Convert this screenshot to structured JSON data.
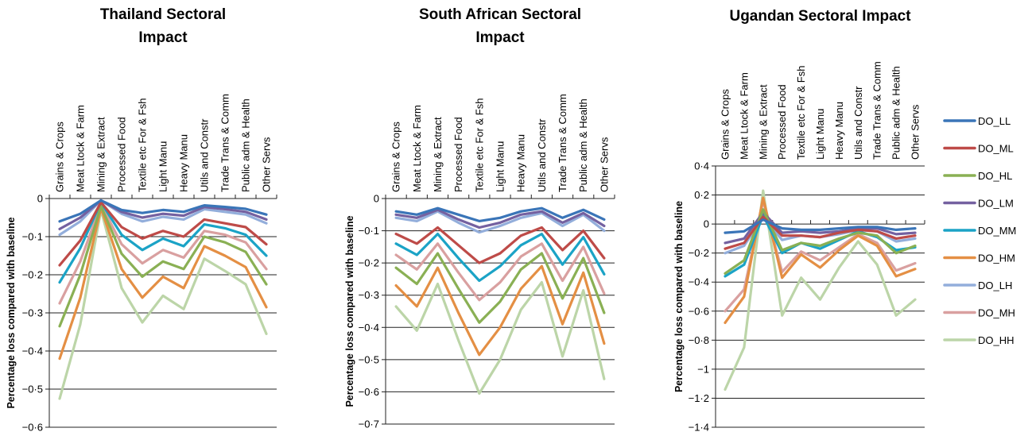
{
  "series_colors": {
    "DO_LL": "#3a75b8",
    "DO_ML": "#be4b48",
    "DO_HL": "#8ab054",
    "DO_LM": "#7461a0",
    "DO_MM": "#1ba3c6",
    "DO_HM": "#e48f44",
    "DO_LH": "#93aedb",
    "DO_MH": "#d9a0a0",
    "DO_HH": "#bcd5a8"
  },
  "legend": [
    "DO_LL",
    "DO_ML",
    "DO_HL",
    "DO_LM",
    "DO_MM",
    "DO_HM",
    "DO_LH",
    "DO_MH",
    "DO_HH"
  ],
  "chart_data": [
    {
      "type": "line",
      "title_lines": [
        "Thailand Sectoral",
        "Impact"
      ],
      "ylabel": "Percentage loss compared with baseline",
      "ylim": [
        -0.6,
        0
      ],
      "yticks": [
        0,
        -0.1,
        -0.2,
        -0.3,
        -0.4,
        -0.5,
        -0.6
      ],
      "ytick_labels": [
        "0",
        "−0·1",
        "−0·2",
        "−0·3",
        "−0·4",
        "−0·5",
        "−0·6"
      ],
      "grid": true,
      "categories": [
        "Grains & Crops",
        "Meat Ltock & Farm",
        "Mining & Extract",
        "Processed Food",
        "Textile etc For & Fsh",
        "Light Manu",
        "Heavy Manu",
        "Utils and Constr",
        "Trade Trans & Comm",
        "Public adm & Health",
        "Other Servs"
      ],
      "series": [
        {
          "name": "DO_LL",
          "values": [
            -0.06,
            -0.04,
            -0.005,
            -0.03,
            -0.038,
            -0.03,
            -0.035,
            -0.018,
            -0.022,
            -0.027,
            -0.042
          ]
        },
        {
          "name": "DO_ML",
          "values": [
            -0.175,
            -0.11,
            -0.01,
            -0.075,
            -0.105,
            -0.085,
            -0.1,
            -0.055,
            -0.065,
            -0.075,
            -0.12
          ]
        },
        {
          "name": "DO_HL",
          "values": [
            -0.335,
            -0.2,
            -0.02,
            -0.145,
            -0.205,
            -0.165,
            -0.185,
            -0.1,
            -0.115,
            -0.14,
            -0.225
          ]
        },
        {
          "name": "DO_LM",
          "values": [
            -0.08,
            -0.05,
            -0.005,
            -0.035,
            -0.05,
            -0.04,
            -0.045,
            -0.022,
            -0.028,
            -0.035,
            -0.055
          ]
        },
        {
          "name": "DO_MM",
          "values": [
            -0.22,
            -0.13,
            -0.01,
            -0.095,
            -0.135,
            -0.105,
            -0.125,
            -0.068,
            -0.078,
            -0.095,
            -0.15
          ]
        },
        {
          "name": "DO_HM",
          "values": [
            -0.42,
            -0.26,
            -0.025,
            -0.185,
            -0.26,
            -0.205,
            -0.235,
            -0.125,
            -0.15,
            -0.18,
            -0.285
          ]
        },
        {
          "name": "DO_LH",
          "values": [
            -0.095,
            -0.06,
            -0.005,
            -0.04,
            -0.06,
            -0.048,
            -0.055,
            -0.028,
            -0.035,
            -0.042,
            -0.065
          ]
        },
        {
          "name": "DO_MH",
          "values": [
            -0.275,
            -0.165,
            -0.015,
            -0.12,
            -0.17,
            -0.135,
            -0.155,
            -0.085,
            -0.095,
            -0.115,
            -0.185
          ]
        },
        {
          "name": "DO_HH",
          "values": [
            -0.525,
            -0.33,
            -0.03,
            -0.235,
            -0.325,
            -0.255,
            -0.29,
            -0.158,
            -0.19,
            -0.225,
            -0.355
          ]
        }
      ]
    },
    {
      "type": "line",
      "title_lines": [
        "South African Sectoral",
        "Impact"
      ],
      "ylabel": "Percentage loss compared with baseline",
      "ylim": [
        -0.7,
        0
      ],
      "yticks": [
        0,
        -0.1,
        -0.2,
        -0.3,
        -0.4,
        -0.5,
        -0.6,
        -0.7
      ],
      "ytick_labels": [
        "0",
        "−0·1",
        "−0·2",
        "−0·3",
        "−0·4",
        "−0·5",
        "−0·6",
        "−0·7"
      ],
      "grid": true,
      "categories": [
        "Grains & Crops",
        "Meat Ltock & Farm",
        "Mining & Extract",
        "Processed Food",
        "Textile etc For & Fsh",
        "Light Manu",
        "Heavy Manu",
        "Utils and Constr",
        "Trade Trans & Comm",
        "Public adm & Health",
        "Other Servs"
      ],
      "series": [
        {
          "name": "DO_LL",
          "values": [
            -0.04,
            -0.05,
            -0.03,
            -0.05,
            -0.07,
            -0.06,
            -0.04,
            -0.03,
            -0.06,
            -0.035,
            -0.065
          ]
        },
        {
          "name": "DO_ML",
          "values": [
            -0.11,
            -0.14,
            -0.09,
            -0.145,
            -0.2,
            -0.17,
            -0.115,
            -0.09,
            -0.16,
            -0.1,
            -0.185
          ]
        },
        {
          "name": "DO_HL",
          "values": [
            -0.215,
            -0.265,
            -0.17,
            -0.28,
            -0.385,
            -0.32,
            -0.22,
            -0.17,
            -0.31,
            -0.185,
            -0.355
          ]
        },
        {
          "name": "DO_LM",
          "values": [
            -0.05,
            -0.06,
            -0.035,
            -0.065,
            -0.09,
            -0.075,
            -0.05,
            -0.04,
            -0.075,
            -0.045,
            -0.085
          ]
        },
        {
          "name": "DO_MM",
          "values": [
            -0.14,
            -0.175,
            -0.11,
            -0.185,
            -0.255,
            -0.21,
            -0.145,
            -0.11,
            -0.205,
            -0.12,
            -0.235
          ]
        },
        {
          "name": "DO_HM",
          "values": [
            -0.27,
            -0.335,
            -0.215,
            -0.355,
            -0.485,
            -0.4,
            -0.28,
            -0.21,
            -0.39,
            -0.23,
            -0.45
          ]
        },
        {
          "name": "DO_LH",
          "values": [
            -0.06,
            -0.07,
            -0.04,
            -0.075,
            -0.105,
            -0.085,
            -0.06,
            -0.045,
            -0.085,
            -0.05,
            -0.1
          ]
        },
        {
          "name": "DO_MH",
          "values": [
            -0.175,
            -0.22,
            -0.14,
            -0.23,
            -0.315,
            -0.26,
            -0.18,
            -0.14,
            -0.255,
            -0.15,
            -0.295
          ]
        },
        {
          "name": "DO_HH",
          "values": [
            -0.335,
            -0.41,
            -0.265,
            -0.44,
            -0.605,
            -0.5,
            -0.345,
            -0.26,
            -0.49,
            -0.285,
            -0.56
          ]
        }
      ]
    },
    {
      "type": "line",
      "title_lines": [
        "Ugandan Sectoral Impact"
      ],
      "ylabel": "Percentage loss compared with baseline",
      "ylim": [
        -1.4,
        0.4
      ],
      "yticks": [
        0.4,
        0.2,
        0,
        -0.2,
        -0.4,
        -0.6,
        -0.8,
        -1,
        -1.2,
        -1.4
      ],
      "ytick_labels": [
        "0·4",
        "0·2",
        "0",
        "−0·2",
        "−0·4",
        "−0·6",
        "−0·8",
        "−1",
        "−1·2",
        "−1·4"
      ],
      "grid": true,
      "categories": [
        "Grains & Crops",
        "Meat Ltock & Farm",
        "Mining & Extract",
        "Processed Food",
        "Textile etc For & Fsh",
        "Light Manu",
        "Heavy Manu",
        "Utils and Constr",
        "Trade Trans & Comm",
        "Public adm & Health",
        "Other Servs"
      ],
      "series": [
        {
          "name": "DO_LL",
          "values": [
            -0.06,
            -0.05,
            0.03,
            -0.03,
            -0.04,
            -0.04,
            -0.03,
            -0.02,
            -0.02,
            -0.04,
            -0.03
          ]
        },
        {
          "name": "DO_ML",
          "values": [
            -0.17,
            -0.13,
            0.05,
            -0.08,
            -0.08,
            -0.09,
            -0.06,
            -0.04,
            -0.05,
            -0.1,
            -0.08
          ]
        },
        {
          "name": "DO_HL",
          "values": [
            -0.34,
            -0.25,
            0.1,
            -0.18,
            -0.13,
            -0.15,
            -0.1,
            -0.06,
            -0.08,
            -0.2,
            -0.15
          ]
        },
        {
          "name": "DO_LM",
          "values": [
            -0.13,
            -0.1,
            0.08,
            -0.06,
            -0.05,
            -0.06,
            -0.05,
            -0.03,
            -0.03,
            -0.07,
            -0.06
          ]
        },
        {
          "name": "DO_MM",
          "values": [
            -0.36,
            -0.28,
            0.06,
            -0.2,
            -0.13,
            -0.17,
            -0.11,
            -0.05,
            -0.09,
            -0.18,
            -0.16
          ]
        },
        {
          "name": "DO_HM",
          "values": [
            -0.68,
            -0.5,
            0.18,
            -0.37,
            -0.21,
            -0.3,
            -0.18,
            -0.08,
            -0.15,
            -0.36,
            -0.31
          ]
        },
        {
          "name": "DO_LH",
          "values": [
            -0.2,
            -0.15,
            0.05,
            -0.11,
            -0.08,
            -0.09,
            -0.07,
            -0.04,
            -0.05,
            -0.12,
            -0.1
          ]
        },
        {
          "name": "DO_MH",
          "values": [
            -0.6,
            -0.45,
            0.16,
            -0.33,
            -0.19,
            -0.25,
            -0.16,
            -0.07,
            -0.13,
            -0.32,
            -0.27
          ]
        },
        {
          "name": "DO_HH",
          "values": [
            -1.14,
            -0.85,
            0.23,
            -0.63,
            -0.37,
            -0.52,
            -0.3,
            -0.12,
            -0.28,
            -0.63,
            -0.52
          ]
        }
      ]
    }
  ]
}
